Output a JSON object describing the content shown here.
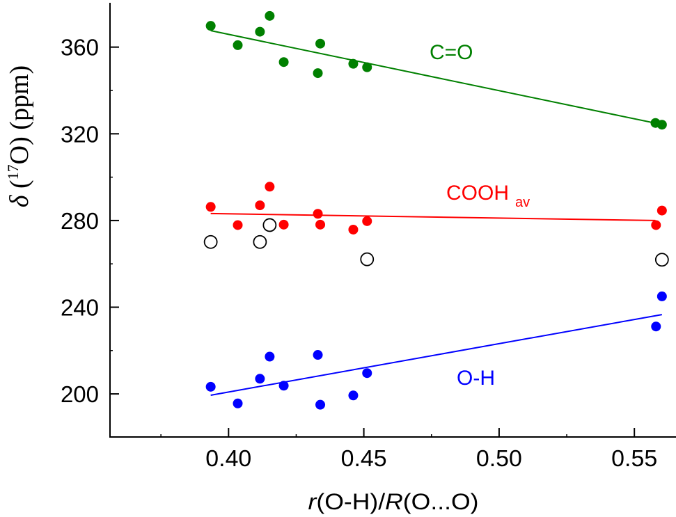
{
  "chart_data": {
    "type": "scatter",
    "title": "",
    "xlabel_parts": [
      {
        "text": "r",
        "italic": true
      },
      {
        "text": "(O-H)/",
        "italic": false
      },
      {
        "text": "R",
        "italic": true
      },
      {
        "text": "(O...O)",
        "italic": false
      }
    ],
    "xlabel": "r(O-H)/R(O...O)",
    "ylabel": "δ (17O) (ppm)",
    "ylabel_parts": {
      "delta": "δ",
      "open1": " (",
      "sup": "17",
      "nucleus": "O) (ppm)"
    },
    "xlim": [
      0.356,
      0.566
    ],
    "ylim": [
      352,
      160
    ],
    "y_range": [
      199.0,
      380.0
    ],
    "xticks": [
      0.4,
      0.45,
      0.5,
      0.55
    ],
    "xtick_labels": [
      "0.40",
      "0.45",
      "0.50",
      "0.55"
    ],
    "xminor": [
      0.375,
      0.425,
      0.475,
      0.525
    ],
    "yticks": [
      200,
      240,
      280,
      320,
      360
    ],
    "ytick_labels": [
      "200",
      "240",
      "280",
      "320",
      "360"
    ],
    "yminor": [
      220,
      260,
      300,
      340
    ],
    "grid": false,
    "legend": "none",
    "series": [
      {
        "name": "C=O",
        "label": "C=O",
        "label_sub": "",
        "color": "#008000",
        "marker": "filled-circle",
        "x": [
          0.3934,
          0.4034,
          0.4116,
          0.4152,
          0.4204,
          0.433,
          0.4339,
          0.4461,
          0.4512,
          0.5578,
          0.5602
        ],
        "y": [
          369.8,
          360.9,
          367.1,
          374.4,
          353.1,
          348.0,
          361.6,
          352.3,
          350.7,
          325.0,
          324.2
        ],
        "fit": {
          "x": [
            0.3934,
            0.5578
          ],
          "y": [
            367.6,
            324.9
          ]
        }
      },
      {
        "name": "COOH av",
        "label": "COOH",
        "label_sub": "av",
        "color": "#ff0000",
        "marker": "filled-circle",
        "x": [
          0.3934,
          0.4034,
          0.4116,
          0.4152,
          0.4204,
          0.433,
          0.4339,
          0.4461,
          0.4512,
          0.558,
          0.5602
        ],
        "y": [
          286.3,
          277.9,
          287.0,
          295.6,
          278.1,
          283.1,
          278.1,
          275.8,
          279.7,
          277.9,
          284.6
        ],
        "fit": {
          "x": [
            0.3934,
            0.5578
          ],
          "y": [
            283.2,
            280.0
          ]
        }
      },
      {
        "name": "open circles",
        "label": "",
        "label_sub": "",
        "color": "#000000",
        "marker": "open-circle",
        "x": [
          0.3934,
          0.4116,
          0.4152,
          0.4512,
          0.5602
        ],
        "y": [
          270.1,
          270.1,
          277.9,
          262.1,
          261.9
        ],
        "fit": null
      },
      {
        "name": "O-H",
        "label": "O-H",
        "label_sub": "",
        "color": "#0000ff",
        "marker": "filled-circle",
        "x": [
          0.3934,
          0.4034,
          0.4116,
          0.4152,
          0.4204,
          0.433,
          0.4339,
          0.4461,
          0.4512,
          0.558,
          0.5602
        ],
        "y": [
          203.3,
          195.6,
          207.0,
          217.2,
          203.8,
          218.0,
          195.0,
          199.3,
          209.6,
          231.1,
          245.0
        ],
        "fit": {
          "x": [
            0.3934,
            0.5602
          ],
          "y": [
            199.4,
            236.6
          ]
        }
      }
    ]
  }
}
